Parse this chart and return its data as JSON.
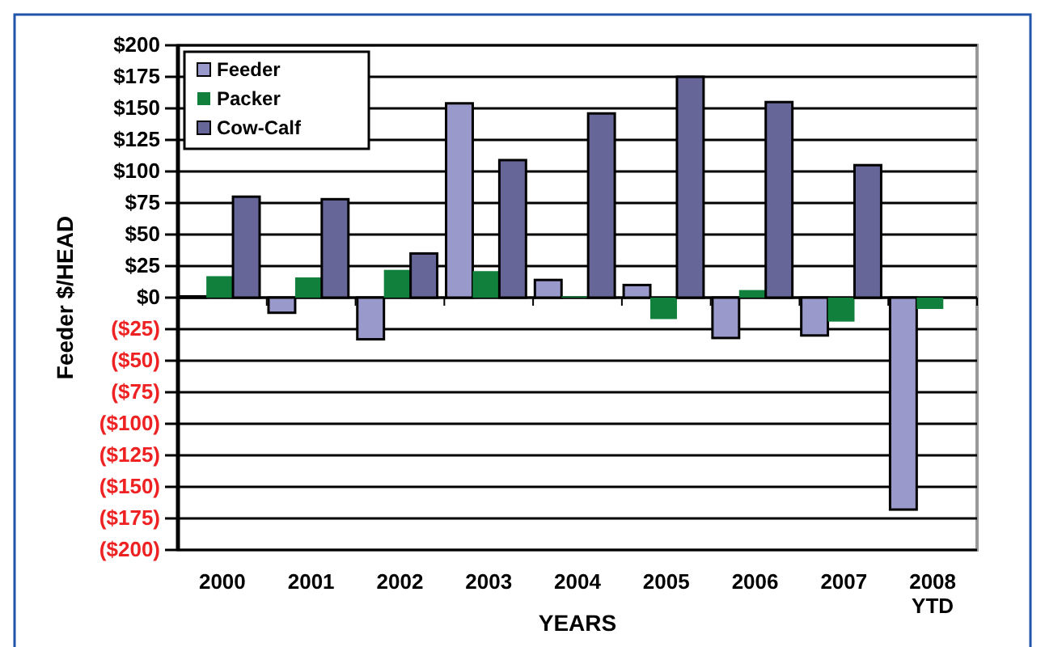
{
  "chart_data": {
    "type": "bar",
    "xlabel": "YEARS",
    "ylabel": "Feeder $/HEAD",
    "categories": [
      "2000",
      "2001",
      "2002",
      "2003",
      "2004",
      "2005",
      "2006",
      "2007",
      "2008\nYTD"
    ],
    "series": [
      {
        "name": "Feeder",
        "color": "#9999cc",
        "values": [
          1,
          -12,
          -33,
          154,
          14,
          10,
          -32,
          -30,
          -168
        ]
      },
      {
        "name": "Packer",
        "color": "#11803c",
        "values": [
          17,
          16,
          22,
          21,
          1,
          -17,
          6,
          -19,
          -9
        ]
      },
      {
        "name": "Cow-Calf",
        "color": "#666699",
        "values": [
          80,
          78,
          35,
          109,
          146,
          175,
          155,
          105,
          null
        ]
      }
    ],
    "ylim": [
      -200,
      200
    ],
    "yticks": [
      {
        "value": 200,
        "label": "$200"
      },
      {
        "value": 175,
        "label": "$175"
      },
      {
        "value": 150,
        "label": "$150"
      },
      {
        "value": 125,
        "label": "$125"
      },
      {
        "value": 100,
        "label": "$100"
      },
      {
        "value": 75,
        "label": "$75"
      },
      {
        "value": 50,
        "label": "$50"
      },
      {
        "value": 25,
        "label": "$25"
      },
      {
        "value": 0,
        "label": "$0"
      },
      {
        "value": -25,
        "label": "($25)"
      },
      {
        "value": -50,
        "label": "($50)"
      },
      {
        "value": -75,
        "label": "($75)"
      },
      {
        "value": -100,
        "label": "($100)"
      },
      {
        "value": -125,
        "label": "($125)"
      },
      {
        "value": -150,
        "label": "($150)"
      },
      {
        "value": -175,
        "label": "($175)"
      },
      {
        "value": -200,
        "label": "($200)"
      }
    ],
    "grid": "y",
    "legend": "top left"
  }
}
